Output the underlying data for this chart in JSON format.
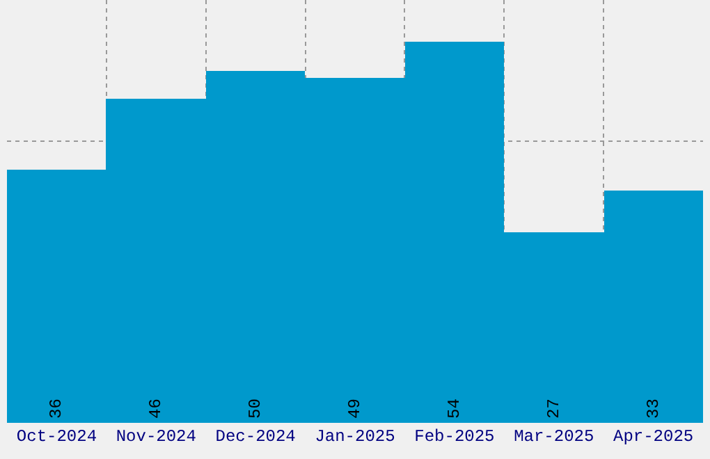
{
  "chart_data": {
    "type": "bar",
    "categories": [
      "Oct-2024",
      "Nov-2024",
      "Dec-2024",
      "Jan-2025",
      "Feb-2025",
      "Mar-2025",
      "Apr-2025"
    ],
    "values": [
      36,
      46,
      50,
      49,
      54,
      27,
      33
    ],
    "color": "#0099cc",
    "data_labels": true,
    "grid": true,
    "tick_labels": "x",
    "ylim": [
      0,
      60
    ]
  }
}
